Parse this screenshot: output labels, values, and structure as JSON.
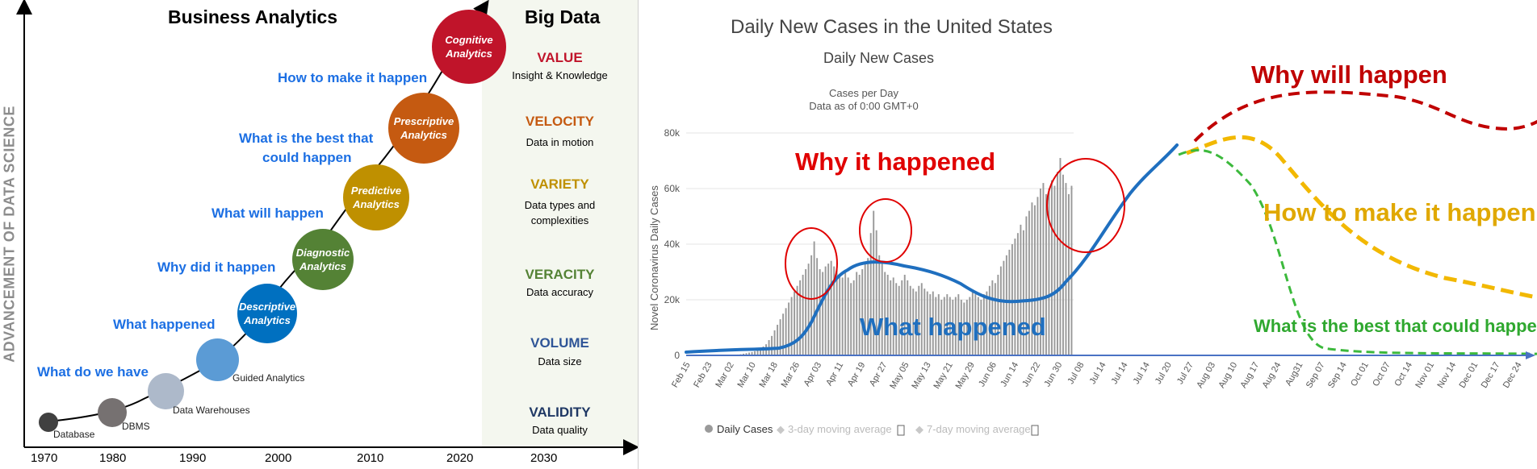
{
  "left": {
    "title": "Business Analytics",
    "big_data_title": "Big Data",
    "y_axis_label": "ADVANCEMENT OF DATA SCIENCE",
    "years": [
      "1970",
      "1980",
      "1990",
      "2000",
      "2010",
      "2020",
      "2030"
    ],
    "questions": {
      "q1": "What do we have",
      "q2": "What happened",
      "q3": "Why did it happen",
      "q4": "What will happen",
      "q5a": "What is the best that",
      "q5b": "could happen",
      "q6": "How to make it happen"
    },
    "stages": {
      "database": "Database",
      "dbms": "DBMS",
      "warehouses": "Data Warehouses",
      "guided": "Guided Analytics",
      "descriptive": [
        "Descriptive",
        "Analytics"
      ],
      "diagnostic": [
        "Diagnostic",
        "Analytics"
      ],
      "predictive": [
        "Predictive",
        "Analytics"
      ],
      "prescriptive": [
        "Prescriptive",
        "Analytics"
      ],
      "cognitive": [
        "Cognitive",
        "Analytics"
      ]
    },
    "vs": [
      {
        "name": "VALUE",
        "desc1": "Insight & Knowledge",
        "desc2": "",
        "color": "#c0142a"
      },
      {
        "name": "VELOCITY",
        "desc1": "Data in motion",
        "desc2": "",
        "color": "#c55a11"
      },
      {
        "name": "VARIETY",
        "desc1": "Data types and",
        "desc2": "complexities",
        "color": "#bf9000"
      },
      {
        "name": "VERACITY",
        "desc1": "Data accuracy",
        "desc2": "",
        "color": "#548235"
      },
      {
        "name": "VOLUME",
        "desc1": "Data size",
        "desc2": "",
        "color": "#2f5597"
      },
      {
        "name": "VALIDITY",
        "desc1": "Data quality",
        "desc2": "",
        "color": "#1f3864"
      }
    ],
    "colors": {
      "question": "#1c6fe3",
      "database": "#404040",
      "dbms": "#767171",
      "warehouses": "#adb9ca",
      "guided": "#5b9bd5",
      "descriptive": "#0070c0",
      "diagnostic": "#548235",
      "predictive": "#bf9000",
      "prescriptive": "#c55a11",
      "cognitive": "#c0142a"
    }
  },
  "right": {
    "title": "Daily New Cases in the United States",
    "subtitle": "Daily New Cases",
    "meta1": "Cases per Day",
    "meta2": "Data as of 0:00 GMT+0",
    "y_axis_label": "Novel Coronavirus Daily Cases",
    "annotations": {
      "why_happened": "Why it happened",
      "what_happened": "What happened",
      "why_will": "Why will happen",
      "how_make": "How to make it happen",
      "best": "What is the best that could happen"
    },
    "legend": {
      "daily": "Daily Cases",
      "ma3": "3-day moving average",
      "ma7": "7-day moving average"
    },
    "colors": {
      "trend": "#1f6fbf",
      "red": "#c00000",
      "yellow": "#f2b800",
      "green": "#3cb93c",
      "bars": "#9a9a9a",
      "axis": "#4a72c4"
    }
  },
  "chart_data": {
    "type": "bar",
    "title": "Daily New Cases in the United States",
    "subtitle": "Daily New Cases",
    "ylabel": "Novel Coronavirus Daily Cases",
    "ylim": [
      0,
      80000
    ],
    "yticks": [
      "0",
      "20k",
      "40k",
      "60k",
      "80k"
    ],
    "x_ticks": [
      "Feb 15",
      "Feb 23",
      "Mar 02",
      "Mar 10",
      "Mar 18",
      "Mar 26",
      "Apr 03",
      "Apr 11",
      "Apr 19",
      "Apr 27",
      "May 05",
      "May 13",
      "May 21",
      "May 29",
      "Jun 06",
      "Jun 14",
      "Jun 22",
      "Jun 30",
      "Jul 08",
      "Jul 14",
      "Jul 14",
      "Jul 14",
      "Jul 20",
      "Jul 27",
      "Aug 03",
      "Aug 10",
      "Aug 17",
      "Aug 24",
      "Aug31",
      "Sep 07",
      "Sep 14",
      "Oct 01",
      "Oct 07",
      "Oct 14",
      "Nov 01",
      "Nov 14",
      "Dec 01",
      "Dec 17",
      "Dec 24"
    ],
    "series": [
      {
        "name": "Daily Cases",
        "values": [
          0,
          0,
          0,
          0,
          0,
          0,
          0,
          0,
          0,
          0,
          0,
          0,
          0,
          0,
          0,
          0,
          100,
          200,
          300,
          400,
          600,
          800,
          1000,
          1200,
          1500,
          2000,
          2500,
          3200,
          4000,
          5500,
          7000,
          9000,
          11000,
          13000,
          15000,
          17000,
          19000,
          21000,
          23000,
          25000,
          27000,
          29000,
          31000,
          33000,
          36000,
          41000,
          35000,
          31000,
          30000,
          32000,
          33000,
          34000,
          32000,
          31000,
          29000,
          28000,
          30000,
          28000,
          26000,
          27000,
          30000,
          29000,
          31000,
          33000,
          35000,
          44000,
          52000,
          45000,
          36000,
          34000,
          30000,
          29000,
          27000,
          28000,
          26000,
          25000,
          27000,
          29000,
          27000,
          25000,
          24000,
          23000,
          25000,
          26000,
          24000,
          23000,
          22000,
          23000,
          21000,
          22000,
          20000,
          21000,
          22000,
          21000,
          20000,
          21000,
          22000,
          20000,
          19000,
          20000,
          21000,
          23000,
          22000,
          21000,
          20000,
          22000,
          23000,
          25000,
          27000,
          26000,
          29000,
          32000,
          34000,
          36000,
          38000,
          40000,
          42000,
          44000,
          47000,
          45000,
          50000,
          52000,
          55000,
          54000,
          57000,
          60000,
          62000,
          58000,
          60000,
          63000,
          61000,
          66000,
          71000,
          65000,
          62000,
          58000,
          61000
        ]
      },
      {
        "name": "3-day moving average",
        "values": []
      },
      {
        "name": "7-day moving average",
        "values": []
      }
    ]
  }
}
